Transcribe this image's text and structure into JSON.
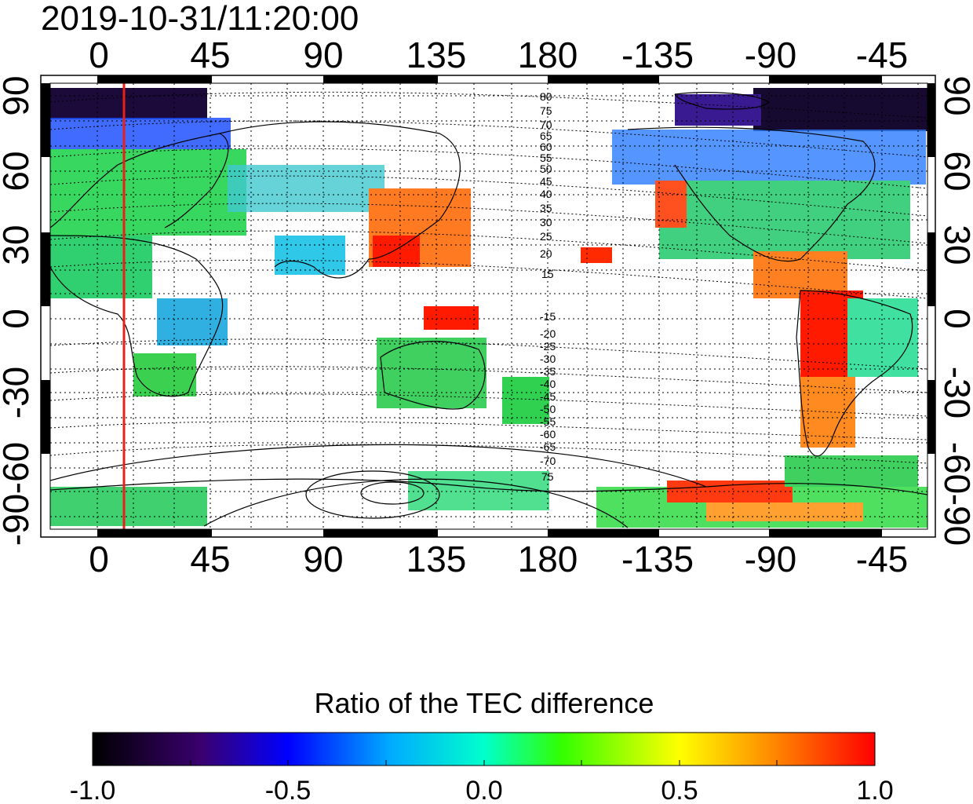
{
  "title": "2019-10-31/11:20:00",
  "map": {
    "lon_ticks_top": [
      "0",
      "45",
      "90",
      "135",
      "180",
      "-135",
      "-90",
      "-45"
    ],
    "lon_ticks_bottom": [
      "0",
      "45",
      "90",
      "135",
      "180",
      "-135",
      "-90",
      "-45"
    ],
    "lat_ticks_left": [
      "90",
      "60",
      "30",
      "0",
      "-30",
      "-60",
      "-90"
    ],
    "lat_ticks_right": [
      "90",
      "60",
      "30",
      "0",
      "-30",
      "-60",
      "-90"
    ],
    "magnetic_latitude_labels_north": [
      "80",
      "75",
      "70",
      "65",
      "60",
      "55",
      "50",
      "45",
      "40",
      "35",
      "30",
      "25",
      "20",
      "15"
    ],
    "magnetic_latitude_labels_south": [
      "-15",
      "-20",
      "-25",
      "-30",
      "-35",
      "-40",
      "-45",
      "-50",
      "-55",
      "-60",
      "-65",
      "-70",
      "75"
    ],
    "marker_longitude": 10,
    "marker_color": "#e8201a"
  },
  "colorbar": {
    "title": "Ratio of the TEC difference",
    "tick_labels": [
      "-1.0",
      "-0.5",
      "0.0",
      "0.5",
      "1.0"
    ],
    "range": [
      -1.0,
      1.0
    ],
    "colormap": [
      "#000000",
      "#3a0070",
      "#0000ff",
      "#00ffff",
      "#00ff00",
      "#ffff00",
      "#ff8000",
      "#ff0000"
    ]
  }
}
